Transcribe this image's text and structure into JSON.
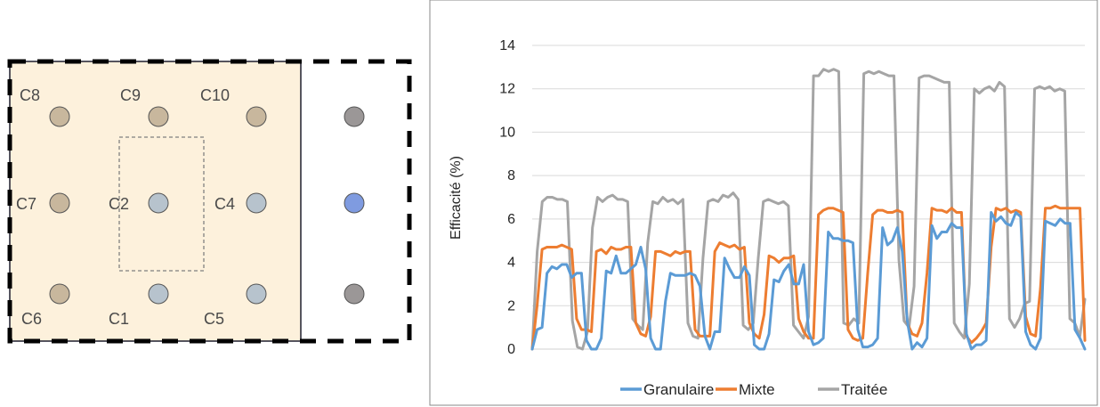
{
  "layout_diagram": {
    "labels": [
      "C8",
      "C9",
      "C10",
      "C7",
      "C2",
      "C4",
      "C6",
      "C1",
      "C5"
    ],
    "colors": {
      "panel_fill": "#fdf1dc",
      "sensor_beige": "#c8b79d",
      "sensor_blue_grey": "#b7c3cd",
      "sensor_grey": "#9b9797",
      "sensor_blue": "#7f9be0"
    }
  },
  "chart_data": {
    "type": "line",
    "title": "",
    "xlabel": "",
    "ylabel": "Efficacité (%)",
    "ylim": [
      0,
      14
    ],
    "yticks": [
      "0",
      "2",
      "4",
      "6",
      "8",
      "10",
      "12",
      "14"
    ],
    "grid": true,
    "legend_position": "bottom",
    "series": [
      {
        "name": "Granulaire",
        "color": "#5b9bd5",
        "values": [
          0,
          0.9,
          1.0,
          3.5,
          3.8,
          3.7,
          3.9,
          3.9,
          3.3,
          3.5,
          3.5,
          0.4,
          0,
          0,
          0.5,
          3.6,
          3.5,
          4.3,
          3.5,
          3.5,
          3.7,
          3.9,
          4.7,
          3.7,
          0.5,
          0,
          0,
          2.2,
          3.5,
          3.4,
          3.4,
          3.4,
          3.5,
          3.4,
          2.9,
          0.6,
          0,
          0.8,
          0.8,
          4.2,
          3.7,
          3.3,
          3.3,
          3.8,
          3.4,
          0.2,
          0,
          0,
          0.7,
          3.2,
          3.1,
          3.6,
          3.9,
          3.0,
          3.0,
          3.9,
          0.8,
          0.2,
          0.3,
          0.5,
          5.4,
          5.1,
          5.1,
          5.0,
          5.0,
          4.9,
          0.9,
          0.1,
          0.1,
          0.2,
          0.5,
          5.6,
          4.8,
          5.0,
          5.6,
          4.5,
          1.3,
          0,
          0.3,
          0.1,
          0.5,
          5.7,
          5.1,
          5.4,
          5.4,
          5.8,
          5.6,
          5.6,
          0.7,
          0,
          0.2,
          0.2,
          0.4,
          6.3,
          5.9,
          6.1,
          5.8,
          5.7,
          6.3,
          6.1,
          0.8,
          0.2,
          0,
          0.5,
          5.9,
          5.8,
          5.7,
          6.0,
          5.8,
          5.8,
          0.9,
          0.5,
          0
        ]
      },
      {
        "name": "Mixte",
        "color": "#ed7d31",
        "values": [
          0,
          2.0,
          4.6,
          4.7,
          4.7,
          4.7,
          4.8,
          4.7,
          4.6,
          1.4,
          0.9,
          0.9,
          0.8,
          4.5,
          4.6,
          4.4,
          4.7,
          4.6,
          4.6,
          4.7,
          4.7,
          1.2,
          0.7,
          0.6,
          1.5,
          4.5,
          4.5,
          4.4,
          4.3,
          4.5,
          4.4,
          4.5,
          4.5,
          0.9,
          0.6,
          0.6,
          0.6,
          4.5,
          4.9,
          4.8,
          4.7,
          4.8,
          4.6,
          4.7,
          1.2,
          0.7,
          0.5,
          1.6,
          4.3,
          4.2,
          4.0,
          4.2,
          4.2,
          4.3,
          1.4,
          0.8,
          0.5,
          0.5,
          6.2,
          6.4,
          6.5,
          6.5,
          6.4,
          6.3,
          0.9,
          0.5,
          0.4,
          0.5,
          3.5,
          6.2,
          6.4,
          6.4,
          6.3,
          6.3,
          6.4,
          6.3,
          1.2,
          0.7,
          0.6,
          1.2,
          3.5,
          6.5,
          6.4,
          6.4,
          6.3,
          6.5,
          6.3,
          6.3,
          0.6,
          0.3,
          0.5,
          0.8,
          1.2,
          4.7,
          6.5,
          6.4,
          6.5,
          6.3,
          6.4,
          6.3,
          1.5,
          0.7,
          0.6,
          2.8,
          6.5,
          6.5,
          6.6,
          6.5,
          6.5,
          6.5,
          6.5,
          6.5,
          0.4
        ]
      },
      {
        "name": "Traitée",
        "color": "#a5a5a5",
        "values": [
          0,
          4.5,
          6.8,
          7.0,
          7.0,
          6.9,
          6.9,
          6.8,
          1.3,
          0.1,
          0,
          0.8,
          5.6,
          7.0,
          6.8,
          7.0,
          7.1,
          6.9,
          6.9,
          6.8,
          1.4,
          1.1,
          0.9,
          4.9,
          6.8,
          6.7,
          7.0,
          6.8,
          6.9,
          6.7,
          6.9,
          1.2,
          0.6,
          0.5,
          4.2,
          6.8,
          6.9,
          6.8,
          7.1,
          7.0,
          7.2,
          6.9,
          1.1,
          0.9,
          1.2,
          4.2,
          6.8,
          6.9,
          6.8,
          6.7,
          6.8,
          6.6,
          1.1,
          0.8,
          0.5,
          1.5,
          12.6,
          12.6,
          12.9,
          12.8,
          12.9,
          12.8,
          1.2,
          1.1,
          1.4,
          1.2,
          12.7,
          12.8,
          12.7,
          12.8,
          12.7,
          12.6,
          12.6,
          4.1,
          1.3,
          1.0,
          2.9,
          12.5,
          12.6,
          12.6,
          12.5,
          12.4,
          12.3,
          12.3,
          1.2,
          0.8,
          0.5,
          3.0,
          12.0,
          11.8,
          12.0,
          12.1,
          11.9,
          12.3,
          12.1,
          1.4,
          1.0,
          1.4,
          2.1,
          2.2,
          12.0,
          12.1,
          12.0,
          12.1,
          11.9,
          12.0,
          11.9,
          1.4,
          1.2,
          0.6,
          2.3
        ]
      }
    ]
  }
}
